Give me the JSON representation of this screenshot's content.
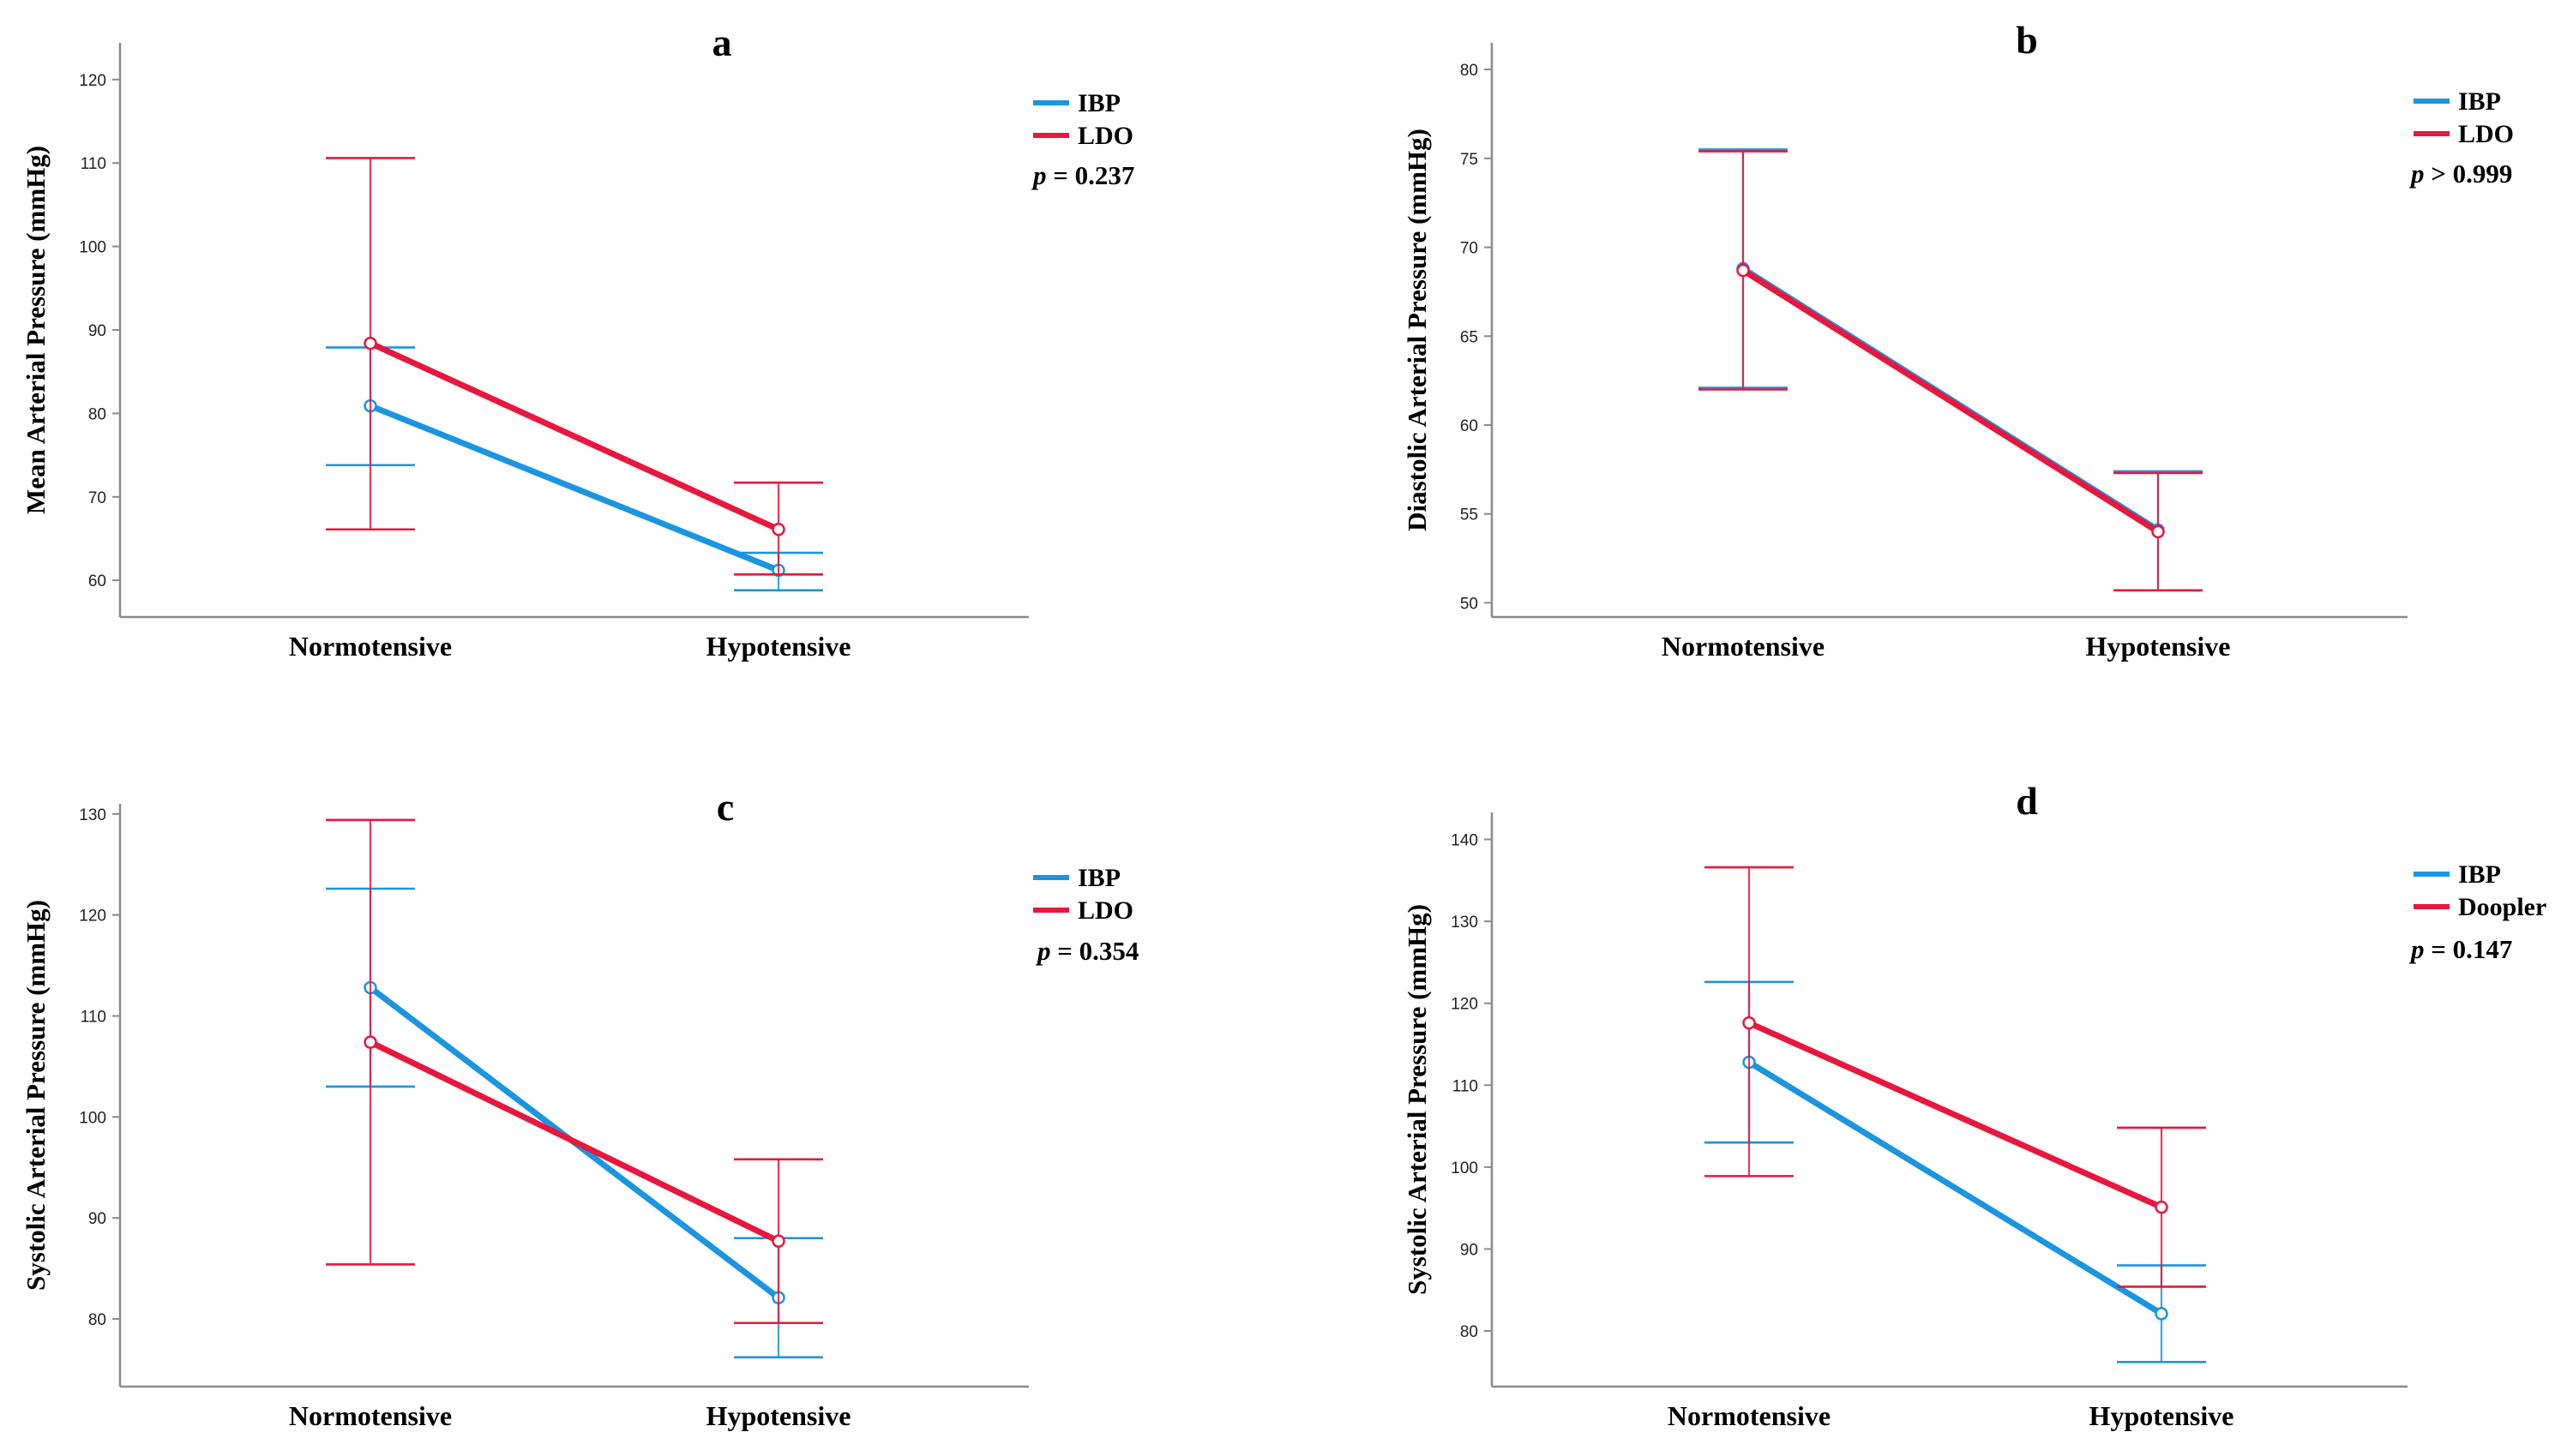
{
  "colors": {
    "ibp": "#1b95e0",
    "ldo": "#e8173d"
  },
  "chart_data": [
    {
      "type": "line",
      "panel": "a",
      "title": "a",
      "xlabel": "",
      "ylabel": "Mean Arterial Pressure (mmHg)",
      "categories": [
        "Normotensive",
        "Hypotensive"
      ],
      "ylim": [
        55.6,
        124.4
      ],
      "yticks": [
        60,
        70,
        80,
        90,
        100,
        110,
        120
      ],
      "series": [
        {
          "name": "IBP",
          "color": "#1b95e0",
          "values": [
            80.9,
            61.2
          ],
          "err_low": [
            73.8,
            58.8
          ],
          "err_high": [
            87.9,
            63.3
          ]
        },
        {
          "name": "LDO",
          "color": "#e8173d",
          "values": [
            88.4,
            66.1
          ],
          "err_low": [
            66.1,
            60.7
          ],
          "err_high": [
            110.6,
            71.7
          ]
        }
      ],
      "legend": [
        "IBP",
        "LDO"
      ],
      "p_symbol": "p",
      "p_text": " = 0.237"
    },
    {
      "type": "line",
      "panel": "b",
      "title": "b",
      "xlabel": "",
      "ylabel": "Diastolic Arterial Pressure (mmHg)",
      "categories": [
        "Normotensive",
        "Hypotensive"
      ],
      "ylim": [
        49.2,
        81.5
      ],
      "yticks": [
        50,
        55,
        60,
        65,
        70,
        75,
        80
      ],
      "series": [
        {
          "name": "IBP",
          "color": "#1b95e0",
          "values": [
            68.8,
            54.1
          ],
          "err_low": [
            62.1,
            50.7
          ],
          "err_high": [
            75.5,
            57.4
          ]
        },
        {
          "name": "LDO",
          "color": "#e8173d",
          "values": [
            68.7,
            54.0
          ],
          "err_low": [
            62.0,
            50.7
          ],
          "err_high": [
            75.4,
            57.3
          ]
        }
      ],
      "legend": [
        "IBP",
        "LDO"
      ],
      "p_symbol": "p",
      "p_text": " > 0.999"
    },
    {
      "type": "line",
      "panel": "c",
      "title": "c",
      "xlabel": "",
      "ylabel": "Systolic Arterial Pressure (mmHg)",
      "categories": [
        "Normotensive",
        "Hypotensive"
      ],
      "ylim": [
        73.3,
        131.0
      ],
      "yticks": [
        80,
        90,
        100,
        110,
        120,
        130
      ],
      "series": [
        {
          "name": "IBP",
          "color": "#1b95e0",
          "values": [
            112.8,
            82.1
          ],
          "err_low": [
            103.0,
            76.2
          ],
          "err_high": [
            122.6,
            88.0
          ]
        },
        {
          "name": "LDO",
          "color": "#e8173d",
          "values": [
            107.4,
            87.7
          ],
          "err_low": [
            85.4,
            79.6
          ],
          "err_high": [
            129.4,
            95.8
          ]
        }
      ],
      "legend": [
        "IBP",
        "LDO"
      ],
      "p_symbol": "p",
      "p_text": " = 0.354"
    },
    {
      "type": "line",
      "panel": "d",
      "title": "d",
      "xlabel": "",
      "ylabel": "Systolic Arterial Pressure (mmHg)",
      "categories": [
        "Normotensive",
        "Hypotensive"
      ],
      "ylim": [
        73.2,
        143.3
      ],
      "yticks": [
        80,
        90,
        100,
        110,
        120,
        130,
        140
      ],
      "series": [
        {
          "name": "IBP",
          "color": "#1b95e0",
          "values": [
            112.8,
            82.1
          ],
          "err_low": [
            103.0,
            76.2
          ],
          "err_high": [
            122.6,
            88.0
          ]
        },
        {
          "name": "Doopler",
          "color": "#e8173d",
          "values": [
            117.6,
            95.1
          ],
          "err_low": [
            98.9,
            85.4
          ],
          "err_high": [
            136.6,
            104.8
          ]
        }
      ],
      "legend": [
        "IBP",
        "Doopler"
      ],
      "p_symbol": "p",
      "p_text": " = 0.147"
    }
  ]
}
